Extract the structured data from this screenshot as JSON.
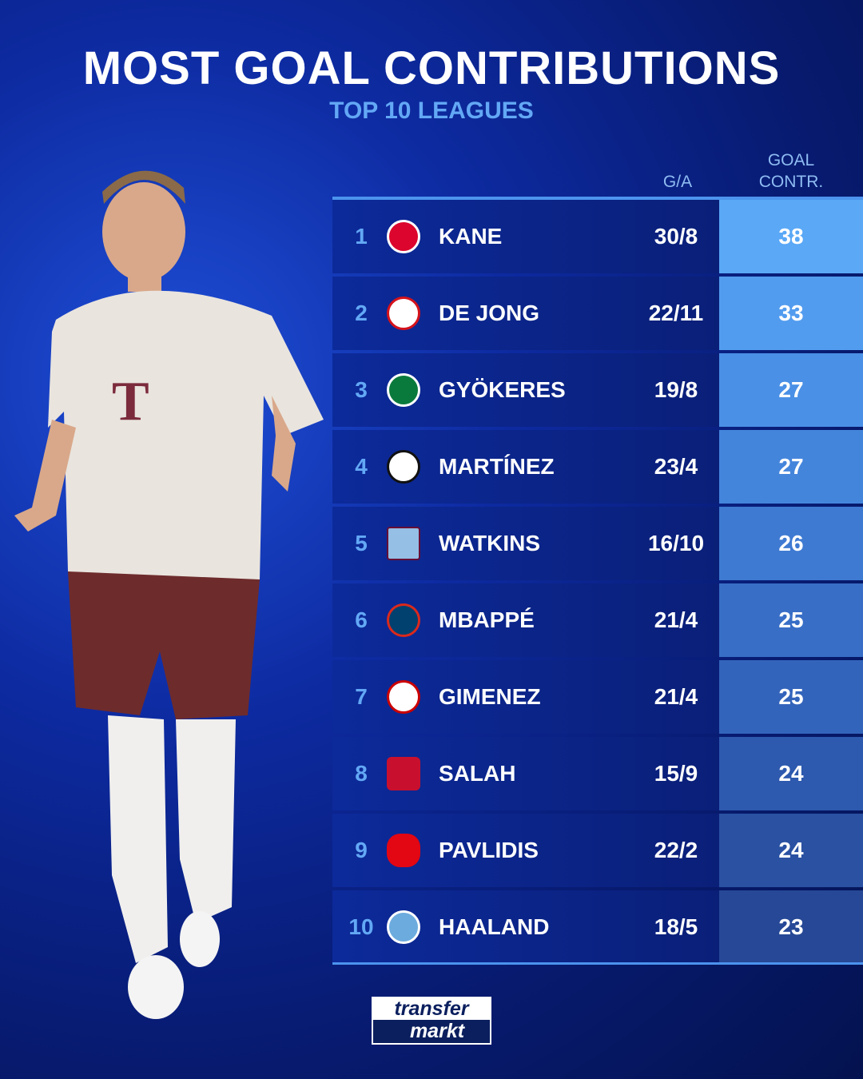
{
  "header": {
    "title": "MOST GOAL CONTRIBUTIONS",
    "subtitle": "TOP 10 LEAGUES"
  },
  "columns": {
    "ga": "G/A",
    "goal_contr_line1": "GOAL",
    "goal_contr_line2": "CONTR."
  },
  "rows": [
    {
      "rank": "1",
      "club_icon": "bayern-munich-crest",
      "name": "KANE",
      "ga": "30/8",
      "gc": "38",
      "color": "#5aa8f6"
    },
    {
      "rank": "2",
      "club_icon": "psv-crest",
      "name": "DE JONG",
      "ga": "22/11",
      "gc": "33",
      "color": "#529cef"
    },
    {
      "rank": "3",
      "club_icon": "sporting-cp-crest",
      "name": "GYÖKERES",
      "ga": "19/8",
      "gc": "27",
      "color": "#4a90e6"
    },
    {
      "rank": "4",
      "club_icon": "inter-crest",
      "name": "MARTÍNEZ",
      "ga": "23/4",
      "gc": "27",
      "color": "#4485dc"
    },
    {
      "rank": "5",
      "club_icon": "aston-villa-crest",
      "name": "WATKINS",
      "ga": "16/10",
      "gc": "26",
      "color": "#3e7ad2"
    },
    {
      "rank": "6",
      "club_icon": "psg-crest",
      "name": "MBAPPÉ",
      "ga": "21/4",
      "gc": "25",
      "color": "#386ec6"
    },
    {
      "rank": "7",
      "club_icon": "feyenoord-crest",
      "name": "GIMENEZ",
      "ga": "21/4",
      "gc": "25",
      "color": "#3364bb"
    },
    {
      "rank": "8",
      "club_icon": "liverpool-crest",
      "name": "SALAH",
      "ga": "15/9",
      "gc": "24",
      "color": "#2d59ae"
    },
    {
      "rank": "9",
      "club_icon": "az-alkmaar-crest",
      "name": "PAVLIDIS",
      "ga": "22/2",
      "gc": "24",
      "color": "#2a51a2"
    },
    {
      "rank": "10",
      "club_icon": "manchester-city-crest",
      "name": "HAALAND",
      "ga": "18/5",
      "gc": "23",
      "color": "#264896"
    }
  ],
  "branding": {
    "logo_line1": "transfer",
    "logo_line2": "markt"
  }
}
